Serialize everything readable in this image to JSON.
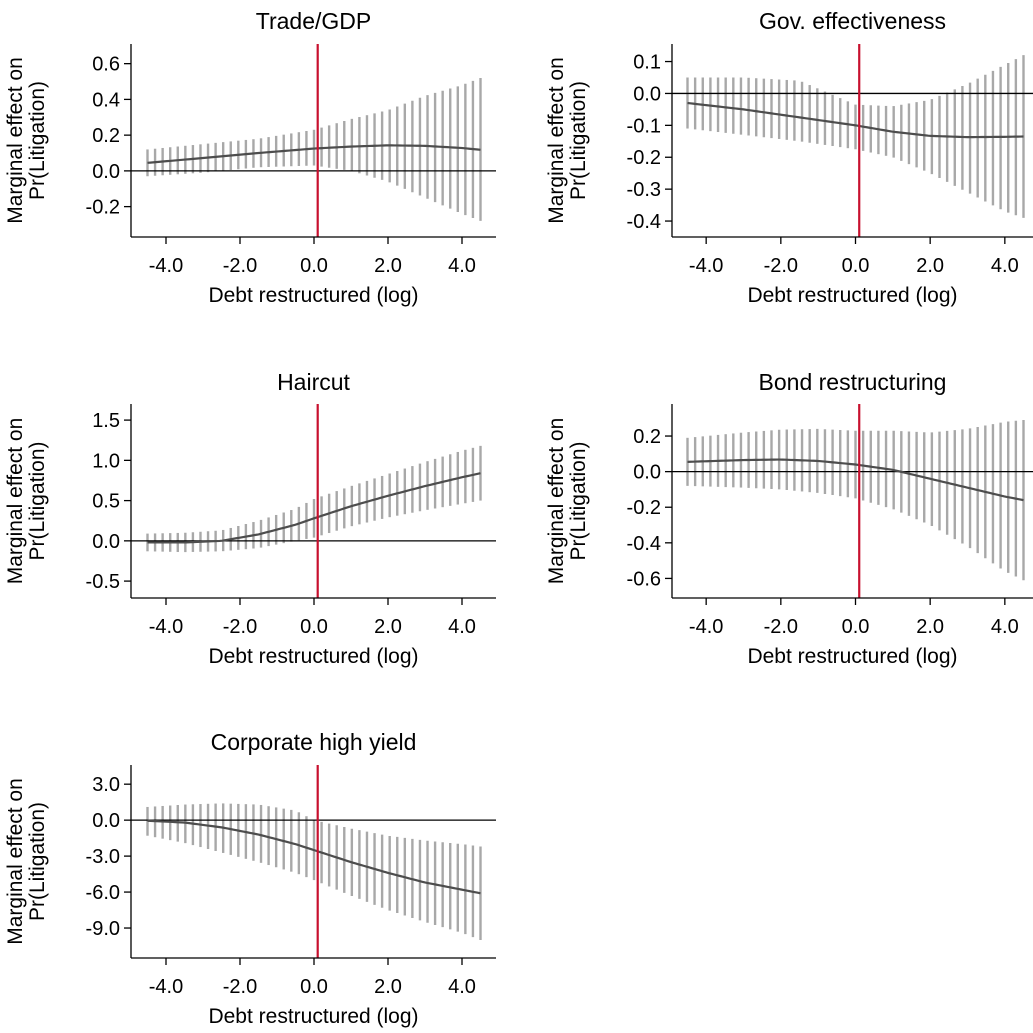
{
  "chart_data": [
    {
      "type": "line",
      "title": "Trade/GDP",
      "xlabel": "Debt restructured (log)",
      "ylabel": [
        "Marginal effect on",
        "Pr(Litigation)"
      ],
      "x_range": [
        -4.5,
        4.5
      ],
      "xticks": [
        -4.0,
        -2.0,
        0.0,
        2.0,
        4.0
      ],
      "xtick_labels": [
        "-4.0",
        "-2.0",
        "0.0",
        "2.0",
        "4.0"
      ],
      "ylim": [
        -0.37,
        0.71
      ],
      "yticks": [
        -0.2,
        0.0,
        0.2,
        0.4,
        0.6
      ],
      "ytick_labels": [
        "-0.2",
        "0.0",
        "0.2",
        "0.4",
        "0.6"
      ],
      "vline_x": 0.1,
      "series": [
        {
          "x": [
            -4.5,
            -3.0,
            -1.5,
            0.0,
            1.0,
            2.0,
            3.0,
            4.0,
            4.5
          ],
          "y": [
            0.045,
            0.072,
            0.1,
            0.125,
            0.136,
            0.143,
            0.14,
            0.128,
            0.118
          ]
        }
      ],
      "ci": [
        {
          "x": [
            -4.5,
            -3.0,
            -1.5,
            0.0,
            1.0,
            2.0,
            3.0,
            4.0,
            4.5
          ],
          "low": [
            -0.03,
            -0.01,
            0.02,
            0.03,
            0.0,
            -0.06,
            -0.15,
            -0.24,
            -0.28
          ],
          "high": [
            0.12,
            0.15,
            0.18,
            0.23,
            0.29,
            0.34,
            0.42,
            0.48,
            0.52
          ]
        }
      ]
    },
    {
      "type": "line",
      "title": "Gov. effectiveness",
      "xlabel": "Debt restructured (log)",
      "ylabel": [
        "Marginal effect on",
        "Pr(Litigation)"
      ],
      "x_range": [
        -4.5,
        4.5
      ],
      "xticks": [
        -4.0,
        -2.0,
        0.0,
        2.0,
        4.0
      ],
      "xtick_labels": [
        "-4.0",
        "-2.0",
        "0.0",
        "2.0",
        "4.0"
      ],
      "ylim": [
        -0.45,
        0.155
      ],
      "yticks": [
        -0.4,
        -0.3,
        -0.2,
        -0.1,
        0.0,
        0.1
      ],
      "ytick_labels": [
        "-0.4",
        "-0.3",
        "-0.2",
        "-0.1",
        "0.0",
        "0.1"
      ],
      "vline_x": 0.1,
      "series": [
        {
          "x": [
            -4.5,
            -3.0,
            -1.5,
            0.0,
            1.0,
            2.0,
            3.0,
            4.0,
            4.5
          ],
          "y": [
            -0.03,
            -0.05,
            -0.075,
            -0.1,
            -0.12,
            -0.133,
            -0.137,
            -0.136,
            -0.135
          ]
        }
      ],
      "ci": [
        {
          "x": [
            -4.5,
            -3.0,
            -1.5,
            0.0,
            1.0,
            2.0,
            3.0,
            4.0,
            4.5
          ],
          "low": [
            -0.11,
            -0.13,
            -0.15,
            -0.175,
            -0.2,
            -0.25,
            -0.31,
            -0.37,
            -0.39
          ],
          "high": [
            0.05,
            0.05,
            0.04,
            -0.035,
            -0.04,
            -0.02,
            0.03,
            0.09,
            0.12
          ]
        }
      ]
    },
    {
      "type": "line",
      "title": "Haircut",
      "xlabel": "Debt restructured (log)",
      "ylabel": [
        "Marginal effect on",
        "Pr(Litigation)"
      ],
      "x_range": [
        -4.5,
        4.5
      ],
      "xticks": [
        -4.0,
        -2.0,
        0.0,
        2.0,
        4.0
      ],
      "xtick_labels": [
        "-4.0",
        "-2.0",
        "0.0",
        "2.0",
        "4.0"
      ],
      "ylim": [
        -0.71,
        1.7
      ],
      "yticks": [
        -0.5,
        0.0,
        0.5,
        1.0,
        1.5
      ],
      "ytick_labels": [
        "-0.5",
        "0.0",
        "0.5",
        "1.0",
        "1.5"
      ],
      "vline_x": 0.1,
      "series": [
        {
          "x": [
            -4.5,
            -3.5,
            -2.5,
            -1.5,
            -0.5,
            0.0,
            1.0,
            2.0,
            3.0,
            4.0,
            4.5
          ],
          "y": [
            -0.02,
            -0.02,
            0.0,
            0.08,
            0.2,
            0.28,
            0.43,
            0.56,
            0.68,
            0.79,
            0.84
          ]
        }
      ],
      "ci": [
        {
          "x": [
            -4.5,
            -3.5,
            -2.5,
            -1.5,
            -0.5,
            0.0,
            1.0,
            2.0,
            3.0,
            4.0,
            4.5
          ],
          "low": [
            -0.13,
            -0.14,
            -0.13,
            -0.09,
            0.0,
            0.04,
            0.18,
            0.29,
            0.38,
            0.46,
            0.5
          ]
        }
      ]
    },
    {
      "type": "line",
      "title": "Bond restructuring",
      "xlabel": "Debt restructured (log)",
      "ylabel": [
        "Marginal effect on",
        "Pr(Litigation)"
      ],
      "x_range": [
        -4.5,
        4.5
      ],
      "xticks": [
        -4.0,
        -2.0,
        0.0,
        2.0,
        4.0
      ],
      "xtick_labels": [
        "-4.0",
        "-2.0",
        "0.0",
        "2.0",
        "4.0"
      ],
      "ylim": [
        -0.71,
        0.38
      ],
      "yticks": [
        -0.6,
        -0.4,
        -0.2,
        0.0,
        0.2
      ],
      "ytick_labels": [
        "-0.6",
        "-0.4",
        "-0.2",
        "0.0",
        "0.2"
      ],
      "vline_x": 0.1,
      "series": [
        {
          "x": [
            -4.5,
            -3.0,
            -2.0,
            -1.0,
            0.0,
            1.0,
            2.0,
            3.0,
            4.0,
            4.5
          ],
          "y": [
            0.055,
            0.065,
            0.068,
            0.06,
            0.04,
            0.01,
            -0.04,
            -0.09,
            -0.14,
            -0.16
          ]
        }
      ],
      "ci": [
        {
          "x": [
            -4.5,
            -3.0,
            -2.0,
            -1.0,
            0.0,
            1.0,
            2.0,
            3.0,
            4.0,
            4.5
          ],
          "low": [
            -0.08,
            -0.09,
            -0.1,
            -0.12,
            -0.15,
            -0.21,
            -0.3,
            -0.42,
            -0.56,
            -0.61
          ]
        }
      ]
    },
    {
      "type": "line",
      "title": "Corporate high yield",
      "xlabel": "Debt restructured (log)",
      "ylabel": [
        "Marginal effect on",
        "Pr(Litigation)"
      ],
      "x_range": [
        -4.5,
        4.5
      ],
      "xticks": [
        -4.0,
        -2.0,
        0.0,
        2.0,
        4.0
      ],
      "xtick_labels": [
        "-4.0",
        "-2.0",
        "0.0",
        "2.0",
        "4.0"
      ],
      "ylim": [
        -11.5,
        4.6
      ],
      "yticks": [
        -9.0,
        -6.0,
        -3.0,
        0.0,
        3.0
      ],
      "ytick_labels": [
        "-9.0",
        "-6.0",
        "-3.0",
        "0.0",
        "3.0"
      ],
      "vline_x": 0.1,
      "series": [
        {
          "x": [
            -4.5,
            -3.5,
            -2.5,
            -1.5,
            -0.5,
            0.0,
            1.0,
            2.0,
            3.0,
            4.0,
            4.5
          ],
          "y": [
            -0.05,
            -0.2,
            -0.6,
            -1.2,
            -2.0,
            -2.5,
            -3.5,
            -4.4,
            -5.2,
            -5.8,
            -6.1
          ]
        }
      ],
      "ci": [
        {
          "x": [
            -4.5,
            -3.5,
            -2.5,
            -1.5,
            -0.5,
            0.0,
            1.0,
            2.0,
            3.0,
            4.0,
            4.5
          ],
          "low": [
            -1.3,
            -1.9,
            -2.7,
            -3.5,
            -4.4,
            -5.0,
            -6.3,
            -7.5,
            -8.5,
            -9.4,
            -10.0
          ],
          "high": [
            1.1,
            1.3,
            1.4,
            1.3,
            0.8,
            0.0,
            -0.7,
            -1.3,
            -1.7,
            -2.0,
            -2.2
          ]
        }
      ]
    }
  ],
  "colors": {
    "reference_line": "#c8102e",
    "fitted_line": "#4d4d4d",
    "ci_bars": "#a8a8a8",
    "axis": "#000000"
  }
}
